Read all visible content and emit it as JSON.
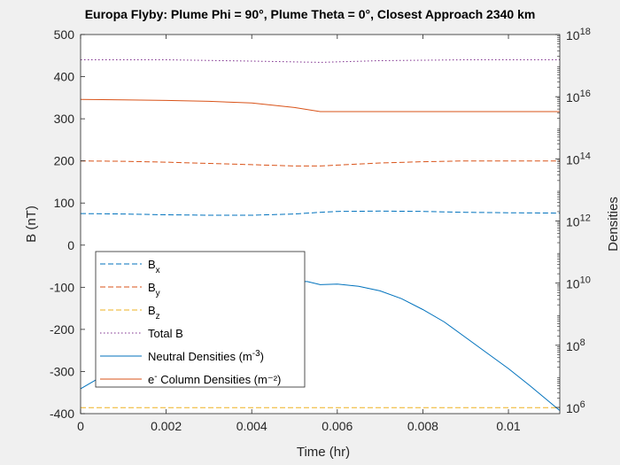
{
  "chart_data": {
    "type": "line",
    "title": "Europa Flyby: Plume Phi = 90°, Plume Theta = 0°, Closest Approach 2340 km",
    "xlabel": "Time (hr)",
    "ylabel_left": "B (nT)",
    "ylabel_right": "Densities",
    "xlim": [
      0,
      0.0112
    ],
    "ylim_left": [
      -400,
      500
    ],
    "ylim_right_log10": [
      5.8,
      18
    ],
    "x_ticks": [
      "0",
      "0.002",
      "0.004",
      "0.006",
      "0.008",
      "0.01"
    ],
    "x_tick_values": [
      0,
      0.002,
      0.004,
      0.006,
      0.008,
      0.01
    ],
    "y_ticks_left": [
      "500",
      "400",
      "300",
      "200",
      "100",
      "0",
      "-100",
      "-200",
      "-300",
      "-400"
    ],
    "y_tick_values_left": [
      500,
      400,
      300,
      200,
      100,
      0,
      -100,
      -200,
      -300,
      -400
    ],
    "y_ticks_right_exponents": [
      "18",
      "16",
      "14",
      "12",
      "10",
      "8",
      "6"
    ],
    "y_ticks_right_base": "10",
    "legend_position": "bottom-left",
    "grid": false,
    "series": [
      {
        "name": "Bx",
        "axis": "left",
        "style": "dashed",
        "color": "#0072bd",
        "x": [
          0,
          0.001,
          0.002,
          0.003,
          0.004,
          0.005,
          0.0056,
          0.006,
          0.007,
          0.008,
          0.009,
          0.01,
          0.0112
        ],
        "y": [
          75,
          74,
          72,
          71,
          71,
          74,
          78,
          80,
          81,
          80,
          78,
          77,
          76
        ]
      },
      {
        "name": "By",
        "axis": "left",
        "style": "dashed",
        "color": "#d95319",
        "x": [
          0,
          0.001,
          0.002,
          0.003,
          0.004,
          0.005,
          0.0056,
          0.006,
          0.007,
          0.008,
          0.009,
          0.01,
          0.0112
        ],
        "y": [
          200,
          199,
          197,
          194,
          191,
          188,
          188,
          190,
          195,
          198,
          200,
          200,
          200
        ]
      },
      {
        "name": "Bz",
        "axis": "left",
        "style": "dashed",
        "color": "#edb120",
        "x": [
          0,
          0.004,
          0.008,
          0.0112
        ],
        "y": [
          -386,
          -386,
          -386,
          -386
        ]
      },
      {
        "name": "Total B",
        "axis": "left",
        "style": "dotted",
        "color": "#7e2f8e",
        "x": [
          0,
          0.002,
          0.004,
          0.0056,
          0.007,
          0.009,
          0.0112
        ],
        "y": [
          440,
          440,
          437,
          434,
          438,
          440,
          440
        ]
      },
      {
        "name": "Neutral Densities (m-3)",
        "axis": "right",
        "style": "solid",
        "color": "#0072bd",
        "x": [
          0,
          0.001,
          0.002,
          0.003,
          0.004,
          0.0045,
          0.005,
          0.0053,
          0.0056,
          0.006,
          0.0065,
          0.007,
          0.0075,
          0.008,
          0.0085,
          0.009,
          0.0095,
          0.01,
          0.0105,
          0.0112
        ],
        "y_log10": [
          6.6,
          7.4,
          8.2,
          8.9,
          9.6,
          9.9,
          10.05,
          10.05,
          9.95,
          9.97,
          9.9,
          9.75,
          9.5,
          9.15,
          8.75,
          8.25,
          7.75,
          7.25,
          6.7,
          5.9
        ]
      },
      {
        "name": "e- Column Densities (m-2)",
        "axis": "right",
        "style": "solid",
        "color": "#d95319",
        "x": [
          0,
          0.001,
          0.002,
          0.003,
          0.004,
          0.005,
          0.0056,
          0.007,
          0.009,
          0.0112
        ],
        "y_log10": [
          15.91,
          15.9,
          15.88,
          15.85,
          15.8,
          15.65,
          15.52,
          15.52,
          15.52,
          15.52
        ]
      }
    ],
    "legend": [
      {
        "key": "bx",
        "base": "B",
        "sub": "x",
        "sup": "",
        "suffix": "",
        "style": "dashed",
        "color": "#0072bd"
      },
      {
        "key": "by",
        "base": "B",
        "sub": "y",
        "sup": "",
        "suffix": "",
        "style": "dashed",
        "color": "#d95319"
      },
      {
        "key": "bz",
        "base": "B",
        "sub": "z",
        "sup": "",
        "suffix": "",
        "style": "dashed",
        "color": "#edb120"
      },
      {
        "key": "total-b",
        "base": "Total B",
        "sub": "",
        "sup": "",
        "suffix": "",
        "style": "dotted",
        "color": "#7e2f8e"
      },
      {
        "key": "neutral-densities",
        "base": "Neutral Densities (m",
        "sub": "",
        "sup": "-3",
        "suffix": ")",
        "style": "solid",
        "color": "#0072bd"
      },
      {
        "key": "e-column-densities",
        "base": "e",
        "sub": "",
        "sup": "-",
        "suffix": " Column Densities (m⁻²)",
        "style": "solid",
        "color": "#d95319"
      }
    ]
  }
}
